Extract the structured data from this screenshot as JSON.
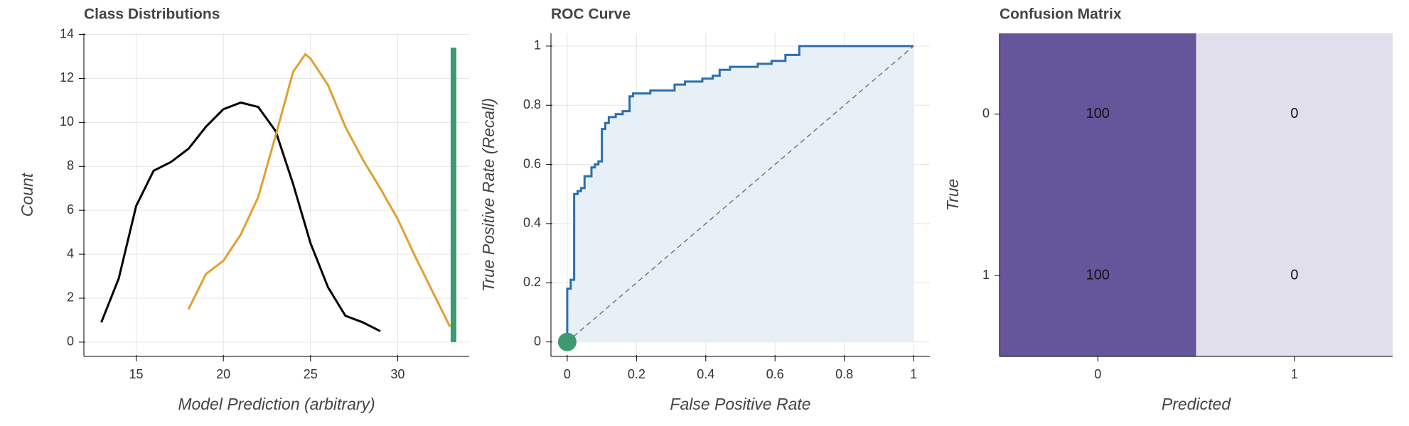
{
  "chart_data": [
    {
      "type": "line",
      "title": "Class Distributions",
      "x_label": "Model Prediction (arbitrary)",
      "y_label": "Count",
      "xlim": [
        12,
        34.1
      ],
      "ylim": [
        -0.65,
        14.05
      ],
      "xticks": [
        15,
        20,
        25,
        30
      ],
      "yticks": [
        0,
        2,
        4,
        6,
        8,
        10,
        12,
        14
      ],
      "grid": true,
      "series": [
        {
          "color": "#000000",
          "line_width": 3,
          "x": [
            13,
            14,
            15,
            16,
            17,
            18,
            19,
            20,
            21,
            22,
            23,
            24,
            25,
            26,
            27,
            28,
            29
          ],
          "values": [
            0.9,
            2.9,
            6.2,
            7.8,
            8.2,
            8.8,
            9.8,
            10.6,
            10.9,
            10.7,
            9.6,
            7.2,
            4.5,
            2.5,
            1.2,
            0.9,
            0.5
          ]
        },
        {
          "color": "#e0a030",
          "line_width": 3,
          "x": [
            18,
            19,
            20,
            21,
            22,
            23,
            24,
            24.7,
            25,
            26,
            27,
            28,
            29,
            30,
            31,
            32,
            33
          ],
          "values": [
            1.5,
            3.1,
            3.7,
            4.9,
            6.6,
            9.4,
            12.3,
            13.1,
            12.9,
            11.7,
            9.8,
            8.3,
            7.0,
            5.6,
            3.9,
            2.3,
            0.7
          ]
        },
        {
          "color": "#3d9970",
          "line_width": 8,
          "x": [
            33.2,
            33.2
          ],
          "values": [
            0,
            13.4
          ]
        }
      ]
    },
    {
      "type": "line",
      "title": "ROC Curve",
      "x_label": "False Positive Rate",
      "y_label": "True Positive Rate (Recall)",
      "xlim": [
        -0.047,
        1.047
      ],
      "ylim": [
        -0.049,
        1.043
      ],
      "xticks": [
        0,
        0.2,
        0.4,
        0.6,
        0.8,
        1
      ],
      "yticks": [
        0,
        0.2,
        0.4,
        0.6,
        0.8,
        1
      ],
      "grid": true,
      "series": [
        {
          "color": "#2c6fad",
          "line_width": 3,
          "fill": "#e8f0f7",
          "x": [
            0,
            0,
            0.01,
            0.01,
            0.02,
            0.02,
            0.03,
            0.03,
            0.04,
            0.04,
            0.05,
            0.05,
            0.07,
            0.07,
            0.08,
            0.08,
            0.09,
            0.09,
            0.1,
            0.1,
            0.11,
            0.11,
            0.12,
            0.12,
            0.14,
            0.14,
            0.16,
            0.16,
            0.18,
            0.18,
            0.19,
            0.19,
            0.24,
            0.24,
            0.31,
            0.31,
            0.34,
            0.34,
            0.39,
            0.39,
            0.42,
            0.42,
            0.44,
            0.44,
            0.47,
            0.47,
            0.55,
            0.55,
            0.59,
            0.59,
            0.63,
            0.63,
            0.67,
            0.67,
            1
          ],
          "values": [
            0,
            0.18,
            0.18,
            0.21,
            0.21,
            0.5,
            0.5,
            0.51,
            0.51,
            0.52,
            0.52,
            0.56,
            0.56,
            0.59,
            0.59,
            0.6,
            0.6,
            0.61,
            0.61,
            0.72,
            0.72,
            0.74,
            0.74,
            0.76,
            0.76,
            0.77,
            0.77,
            0.78,
            0.78,
            0.83,
            0.83,
            0.84,
            0.84,
            0.85,
            0.85,
            0.87,
            0.87,
            0.88,
            0.88,
            0.89,
            0.89,
            0.9,
            0.9,
            0.92,
            0.92,
            0.93,
            0.93,
            0.94,
            0.94,
            0.95,
            0.95,
            0.97,
            0.97,
            1,
            1
          ]
        },
        {
          "color": "#777777",
          "line_width": 1.5,
          "dash": true,
          "x": [
            0,
            1
          ],
          "values": [
            0,
            1
          ]
        },
        {
          "color": "#3d9970",
          "marker": true,
          "x": [
            0
          ],
          "values": [
            0
          ]
        }
      ]
    },
    {
      "type": "heatmap",
      "title": "Confusion Matrix",
      "x_label": "Predicted",
      "y_label": "True",
      "x_categories": [
        "0",
        "1"
      ],
      "y_categories": [
        "0",
        "1"
      ],
      "values": [
        [
          100,
          0
        ],
        [
          100,
          0
        ]
      ],
      "colors": [
        "#e1dfec",
        "#65559b"
      ]
    }
  ]
}
